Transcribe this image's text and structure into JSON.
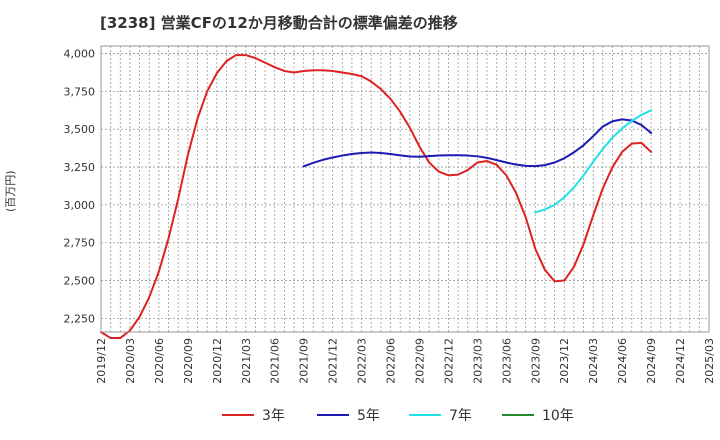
{
  "chart_data": {
    "type": "line",
    "title": "[3238]  営業CFの12か月移動合計の標準偏差の推移",
    "ylabel": "(百万円)",
    "xlabel": "",
    "ylim": [
      2160,
      4050
    ],
    "xlim": [
      "2019/12",
      "2025/03"
    ],
    "x_ticks": [
      "2019/12",
      "2020/03",
      "2020/06",
      "2020/09",
      "2020/12",
      "2021/03",
      "2021/06",
      "2021/09",
      "2021/12",
      "2022/03",
      "2022/06",
      "2022/09",
      "2022/12",
      "2023/03",
      "2023/06",
      "2023/09",
      "2023/12",
      "2024/03",
      "2024/06",
      "2024/09",
      "2024/12",
      "2025/03"
    ],
    "y_ticks": [
      2250,
      2500,
      2750,
      3000,
      3250,
      3500,
      3750,
      4000
    ],
    "y_tick_labels": [
      "2,250",
      "2,500",
      "2,750",
      "3,000",
      "3,250",
      "3,500",
      "3,750",
      "4,000"
    ],
    "grid": true,
    "legend_position": "bottom",
    "series": [
      {
        "name": "3年",
        "color": "#dd2222",
        "x": [
          "2019/12",
          "2020/01",
          "2020/02",
          "2020/03",
          "2020/04",
          "2020/05",
          "2020/06",
          "2020/07",
          "2020/08",
          "2020/09",
          "2020/10",
          "2020/11",
          "2020/12",
          "2021/01",
          "2021/02",
          "2021/03",
          "2021/04",
          "2021/05",
          "2021/06",
          "2021/07",
          "2021/08",
          "2021/09",
          "2021/10",
          "2021/11",
          "2021/12",
          "2022/01",
          "2022/02",
          "2022/03",
          "2022/04",
          "2022/05",
          "2022/06",
          "2022/07",
          "2022/08",
          "2022/09",
          "2022/10",
          "2022/11",
          "2022/12",
          "2023/01",
          "2023/02",
          "2023/03",
          "2023/04",
          "2023/05",
          "2023/06",
          "2023/07",
          "2023/08",
          "2023/09",
          "2023/10",
          "2023/11",
          "2023/12",
          "2024/01",
          "2024/02",
          "2024/03",
          "2024/04",
          "2024/05",
          "2024/06",
          "2024/07",
          "2024/08",
          "2024/09"
        ],
        "values": [
          2160,
          2120,
          2120,
          2170,
          2260,
          2390,
          2560,
          2780,
          3040,
          3330,
          3570,
          3750,
          3870,
          3950,
          3990,
          3990,
          3970,
          3940,
          3910,
          3885,
          3875,
          3885,
          3890,
          3890,
          3885,
          3875,
          3865,
          3850,
          3815,
          3765,
          3700,
          3615,
          3510,
          3385,
          3280,
          3220,
          3195,
          3200,
          3230,
          3280,
          3290,
          3265,
          3195,
          3080,
          2920,
          2710,
          2570,
          2495,
          2500,
          2590,
          2740,
          2930,
          3110,
          3250,
          3350,
          3405,
          3410,
          3350
        ]
      },
      {
        "name": "5年",
        "color": "#1b1bb4",
        "x": [
          "2021/09",
          "2021/10",
          "2021/11",
          "2021/12",
          "2022/01",
          "2022/02",
          "2022/03",
          "2022/04",
          "2022/05",
          "2022/06",
          "2022/07",
          "2022/08",
          "2022/09",
          "2022/10",
          "2022/11",
          "2022/12",
          "2023/01",
          "2023/02",
          "2023/03",
          "2023/04",
          "2023/05",
          "2023/06",
          "2023/07",
          "2023/08",
          "2023/09",
          "2023/10",
          "2023/11",
          "2023/12",
          "2024/01",
          "2024/02",
          "2024/03",
          "2024/04",
          "2024/05",
          "2024/06",
          "2024/07",
          "2024/08",
          "2024/09"
        ],
        "values": [
          3255,
          3278,
          3298,
          3313,
          3326,
          3336,
          3343,
          3346,
          3343,
          3336,
          3327,
          3320,
          3318,
          3322,
          3326,
          3328,
          3328,
          3326,
          3321,
          3311,
          3296,
          3280,
          3267,
          3258,
          3256,
          3263,
          3280,
          3308,
          3347,
          3394,
          3454,
          3518,
          3553,
          3565,
          3558,
          3528,
          3475
        ]
      },
      {
        "name": "7年",
        "color": "#22e0e8",
        "x": [
          "2023/09",
          "2023/10",
          "2023/11",
          "2023/12",
          "2024/01",
          "2024/02",
          "2024/03",
          "2024/04",
          "2024/05",
          "2024/06",
          "2024/07",
          "2024/08",
          "2024/09"
        ],
        "values": [
          2950,
          2970,
          3000,
          3050,
          3115,
          3195,
          3285,
          3370,
          3445,
          3505,
          3555,
          3595,
          3625
        ]
      },
      {
        "name": "10年",
        "color": "#2a8a2a",
        "x": [],
        "values": []
      }
    ]
  }
}
